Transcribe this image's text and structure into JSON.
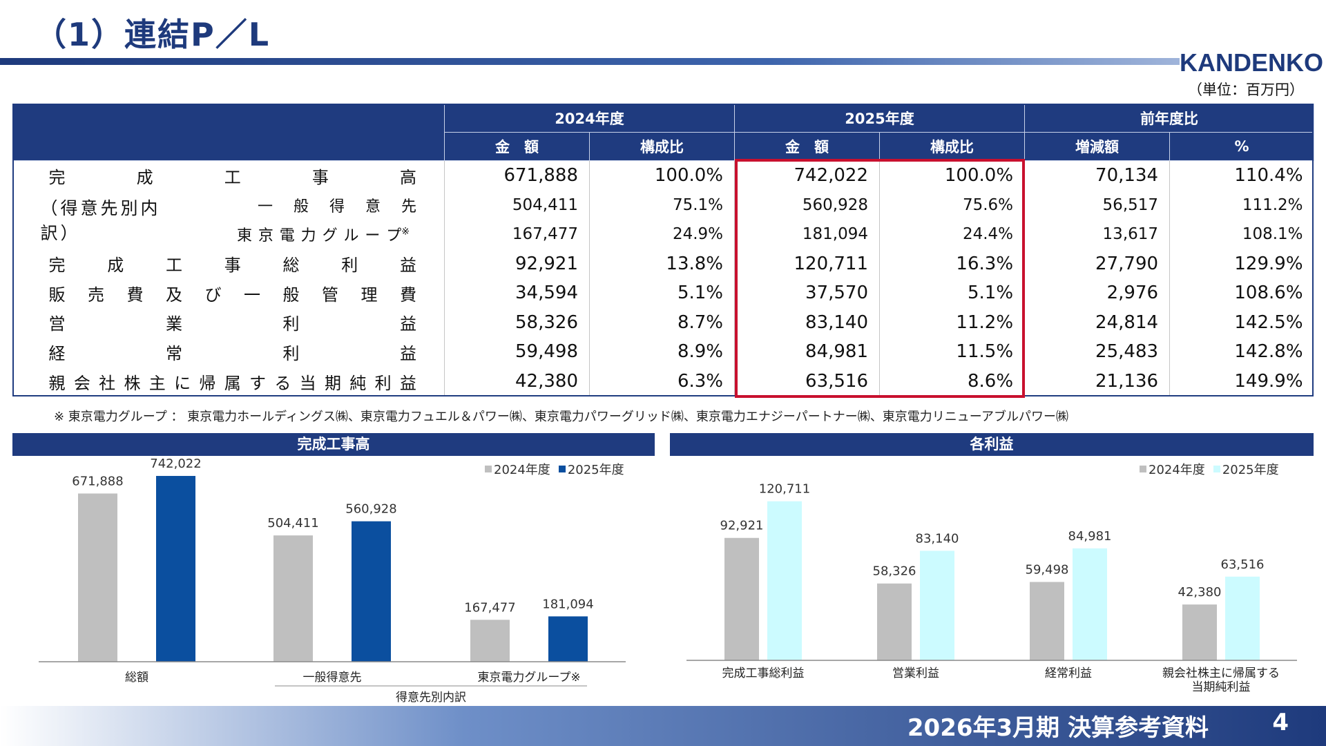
{
  "header": {
    "title": "（1）連結P／L",
    "logo": "KANDENKO",
    "unit": "（単位：百万円）"
  },
  "table": {
    "groups": [
      "2024年度",
      "2025年度",
      "前年度比"
    ],
    "subheaders": [
      "金　額",
      "構成比",
      "金　額",
      "構成比",
      "増減額",
      "%"
    ],
    "breakdown_label": "（得意先別内訳）",
    "rows": [
      {
        "label": "完成工事高",
        "values": [
          "671,888",
          "100.0%",
          "742,022",
          "100.0%",
          "70,134",
          "110.4%"
        ]
      },
      {
        "label": "一般得意先",
        "values": [
          "504,411",
          "75.1%",
          "560,928",
          "75.6%",
          "56,517",
          "111.2%"
        ]
      },
      {
        "label": "東京電力グループ",
        "note_mark": "※",
        "values": [
          "167,477",
          "24.9%",
          "181,094",
          "24.4%",
          "13,617",
          "108.1%"
        ]
      },
      {
        "label": "完成工事総利益",
        "values": [
          "92,921",
          "13.8%",
          "120,711",
          "16.3%",
          "27,790",
          "129.9%"
        ]
      },
      {
        "label": "販売費及び一般管理費",
        "values": [
          "34,594",
          "5.1%",
          "37,570",
          "5.1%",
          "2,976",
          "108.6%"
        ]
      },
      {
        "label": "営業利益",
        "values": [
          "58,326",
          "8.7%",
          "83,140",
          "11.2%",
          "24,814",
          "142.5%"
        ]
      },
      {
        "label": "経常利益",
        "values": [
          "59,498",
          "8.9%",
          "84,981",
          "11.5%",
          "25,483",
          "142.8%"
        ]
      },
      {
        "label": "親会社株主に帰属する当期純利益",
        "values": [
          "42,380",
          "6.3%",
          "63,516",
          "8.6%",
          "21,136",
          "149.9%"
        ]
      }
    ],
    "footnote": "※ 東京電力グループ ： 東京電力ホールディングス㈱、東京電力フュエル＆パワー㈱、東京電力パワーグリッド㈱、東京電力エナジーパートナー㈱、東京電力リニューアブルパワー㈱"
  },
  "chart_data": [
    {
      "type": "bar",
      "title": "完成工事高",
      "categories": [
        "総額",
        "一般得意先",
        "東京電力グループ※"
      ],
      "group_label": "得意先別内訳",
      "series": [
        {
          "name": "2024年度",
          "values": [
            671888,
            504411,
            167477
          ],
          "labels": [
            "671,888",
            "504,411",
            "167,477"
          ],
          "color": "#bfbfbf"
        },
        {
          "name": "2025年度",
          "values": [
            742022,
            560928,
            181094
          ],
          "labels": [
            "742,022",
            "560,928",
            "181,094"
          ],
          "color": "#0b4f9f"
        }
      ],
      "ylim": [
        0,
        800000
      ],
      "legend": "top-right",
      "grid": false
    },
    {
      "type": "bar",
      "title": "各利益",
      "categories": [
        "完成工事総利益",
        "営業利益",
        "経常利益",
        "親会社株主に帰属する当期純利益"
      ],
      "category_lines": [
        [
          "完成工事総利益"
        ],
        [
          "営業利益"
        ],
        [
          "経常利益"
        ],
        [
          "親会社株主に帰属する",
          "当期純利益"
        ]
      ],
      "series": [
        {
          "name": "2024年度",
          "values": [
            92921,
            58326,
            59498,
            42380
          ],
          "labels": [
            "92,921",
            "58,326",
            "59,498",
            "42,380"
          ],
          "color": "#bfbfbf"
        },
        {
          "name": "2025年度",
          "values": [
            120711,
            83140,
            84981,
            63516
          ],
          "labels": [
            "120,711",
            "83,140",
            "84,981",
            "63,516"
          ],
          "color": "#ccfbff"
        }
      ],
      "ylim": [
        0,
        130000
      ],
      "legend": "top-right",
      "grid": false
    }
  ],
  "footer": {
    "text": "2026年3月期 決算参考資料",
    "page": "4"
  }
}
